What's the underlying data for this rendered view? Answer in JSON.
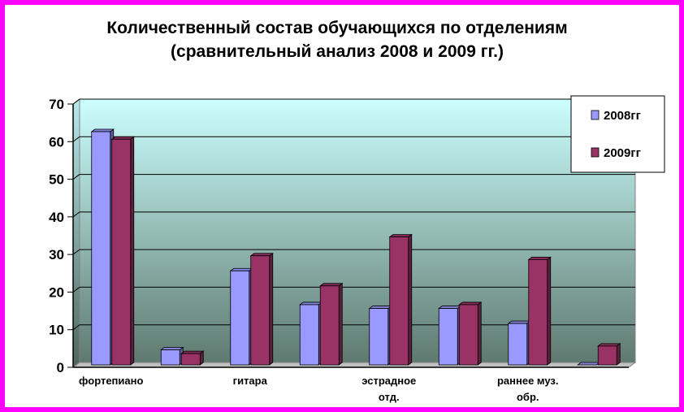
{
  "chart_data": {
    "type": "bar",
    "title_lines": [
      "Количественный состав обучающихся по отделениям",
      "(сравнительный анализ 2008 и 2009 гг.)"
    ],
    "xlabel": "",
    "ylabel": "",
    "ylim": [
      0,
      70
    ],
    "yticks": [
      0,
      10,
      20,
      30,
      40,
      50,
      60,
      70
    ],
    "grid": true,
    "legend_position": "top-right",
    "categories": [
      "фортепиано",
      "",
      "гитара",
      "",
      "эстрадное отд.",
      "",
      "раннее муз. обр.",
      ""
    ],
    "category_label_lines": [
      [
        "фортепиано"
      ],
      [],
      [
        "гитара"
      ],
      [],
      [
        "эстрадное",
        "отд."
      ],
      [],
      [
        "раннее муз.",
        "обр."
      ],
      []
    ],
    "series": [
      {
        "name": "2008гг",
        "color": "#9999ff",
        "values": [
          62,
          4,
          25,
          16,
          15,
          15,
          11,
          0
        ]
      },
      {
        "name": "2009гг",
        "color": "#993366",
        "values": [
          60,
          3,
          29,
          21,
          34,
          16,
          28,
          5
        ]
      }
    ]
  },
  "colors": {
    "frame": "#ff00ff",
    "plot_top": "#ccffff",
    "plot_bottom": "#5f7a70"
  }
}
